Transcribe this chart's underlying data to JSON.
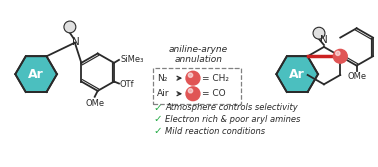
{
  "arrow_label": "aniline-aryne\nannulation",
  "box_lines": [
    {
      "label": "N₂",
      "product": "= CH₂"
    },
    {
      "label": "Air",
      "product": "= CO"
    }
  ],
  "bullet_points": [
    "Atmosphere controls selectivity",
    "Electron rich & poor aryl amines",
    "Mild reaction conditions"
  ],
  "ar_circle_color": "#4bbfbf",
  "ar_text_color": "white",
  "red_circle_color": "#e05555",
  "bond_color": "#2a2a2a",
  "green_check_color": "#22aa44",
  "bg_color": "white",
  "arrow_color": "#2a2a2a",
  "highlight_bond_color": "#cc2222",
  "sub_circle_color": "#e0e0e0"
}
